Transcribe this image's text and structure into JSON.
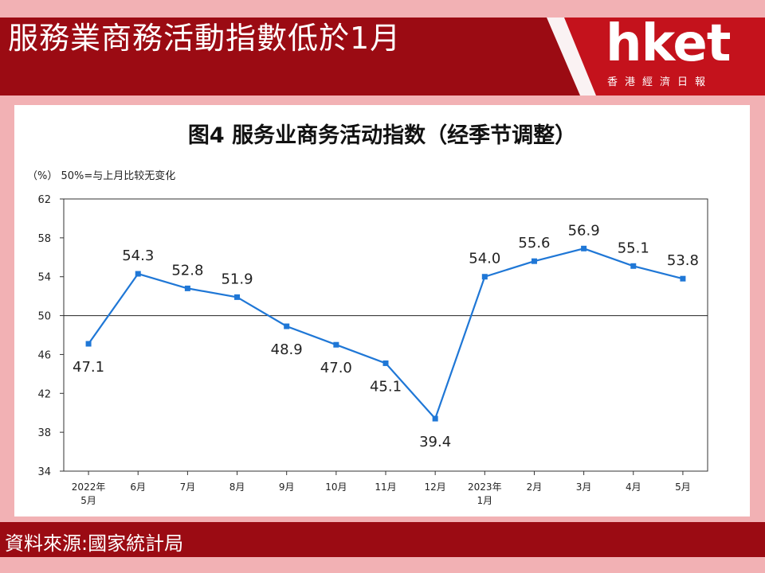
{
  "header": {
    "title": "服務業商務活動指數低於1月"
  },
  "brand": {
    "logo_text": "hket",
    "subtitle": "香港經濟日報",
    "color": "#ffffff"
  },
  "footer": {
    "source": "資料來源:國家統計局"
  },
  "colors": {
    "background": "#f2b1b4",
    "banner": "#9b0b13",
    "line": "#1f77d6"
  },
  "chart_data": {
    "type": "line",
    "title": "图4  服务业商务活动指数（经季节调整）",
    "unit_note": "（%）  50%=与上月比较无变化",
    "categories": [
      "2022年\n5月",
      "6月",
      "7月",
      "8月",
      "9月",
      "10月",
      "11月",
      "12月",
      "2023年\n1月",
      "2月",
      "3月",
      "4月",
      "5月"
    ],
    "series": [
      {
        "values": [
          47.1,
          54.3,
          52.8,
          51.9,
          48.9,
          47.0,
          45.1,
          39.4,
          54.0,
          55.6,
          56.9,
          55.1,
          53.8
        ]
      }
    ],
    "data_labels": [
      "47.1",
      "54.3",
      "52.8",
      "51.9",
      "48.9",
      "47.0",
      "45.1",
      "39.4",
      "54.0",
      "55.6",
      "56.9",
      "55.1",
      "53.8"
    ],
    "ylim": [
      34,
      62
    ],
    "yticks": [
      34,
      38,
      42,
      46,
      50,
      54,
      58,
      62
    ],
    "reference_line": 50,
    "grid": false,
    "legend": "none"
  }
}
